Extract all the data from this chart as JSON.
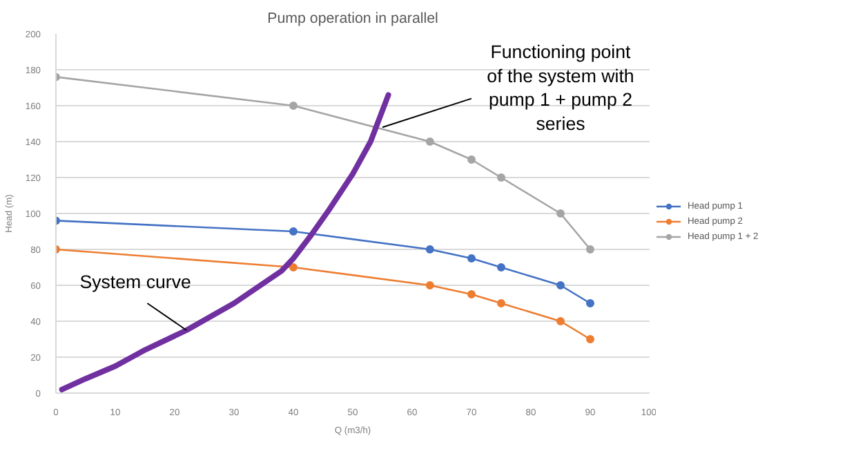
{
  "chart_data": {
    "type": "line",
    "title": "Pump operation in parallel",
    "xlabel": "Q (m3/h)",
    "ylabel": "Head (m)",
    "xlim": [
      0,
      100
    ],
    "ylim": [
      0,
      200
    ],
    "xticks": [
      0,
      10,
      20,
      30,
      40,
      50,
      60,
      70,
      80,
      90,
      100
    ],
    "yticks": [
      0,
      20,
      40,
      60,
      80,
      100,
      120,
      140,
      160,
      180,
      200
    ],
    "grid": "y",
    "legend": "right",
    "marker": "circle",
    "line_style": "solid",
    "series": [
      {
        "name": "Head pump 1",
        "color": "#4472c4",
        "x": [
          0,
          40,
          63,
          70,
          75,
          85,
          90
        ],
        "values": [
          96,
          90,
          80,
          75,
          70,
          60,
          50
        ]
      },
      {
        "name": "Head pump 2",
        "color": "#ed7d31",
        "x": [
          0,
          40,
          63,
          70,
          75,
          85,
          90
        ],
        "values": [
          80,
          70,
          60,
          55,
          50,
          40,
          30
        ]
      },
      {
        "name": "Head pump 1 + 2",
        "color": "#a5a5a5",
        "x": [
          0,
          40,
          63,
          70,
          75,
          85,
          90
        ],
        "values": [
          176,
          160,
          140,
          130,
          120,
          100,
          80
        ]
      },
      {
        "color": "#7030a0",
        "marker": "none",
        "x": [
          1,
          5,
          10,
          15,
          22,
          30,
          38,
          40,
          43,
          46,
          50,
          53,
          56
        ],
        "values": [
          2,
          8,
          15,
          24,
          35,
          50,
          68,
          75,
          88,
          102,
          122,
          140,
          166
        ]
      }
    ],
    "annotations": [
      {
        "text": "System curve",
        "x": 22,
        "y": 35
      },
      {
        "text": "Functioning point\nof the system with\npump 1 + pump 2\nseries",
        "x": 55,
        "y": 148
      }
    ]
  }
}
